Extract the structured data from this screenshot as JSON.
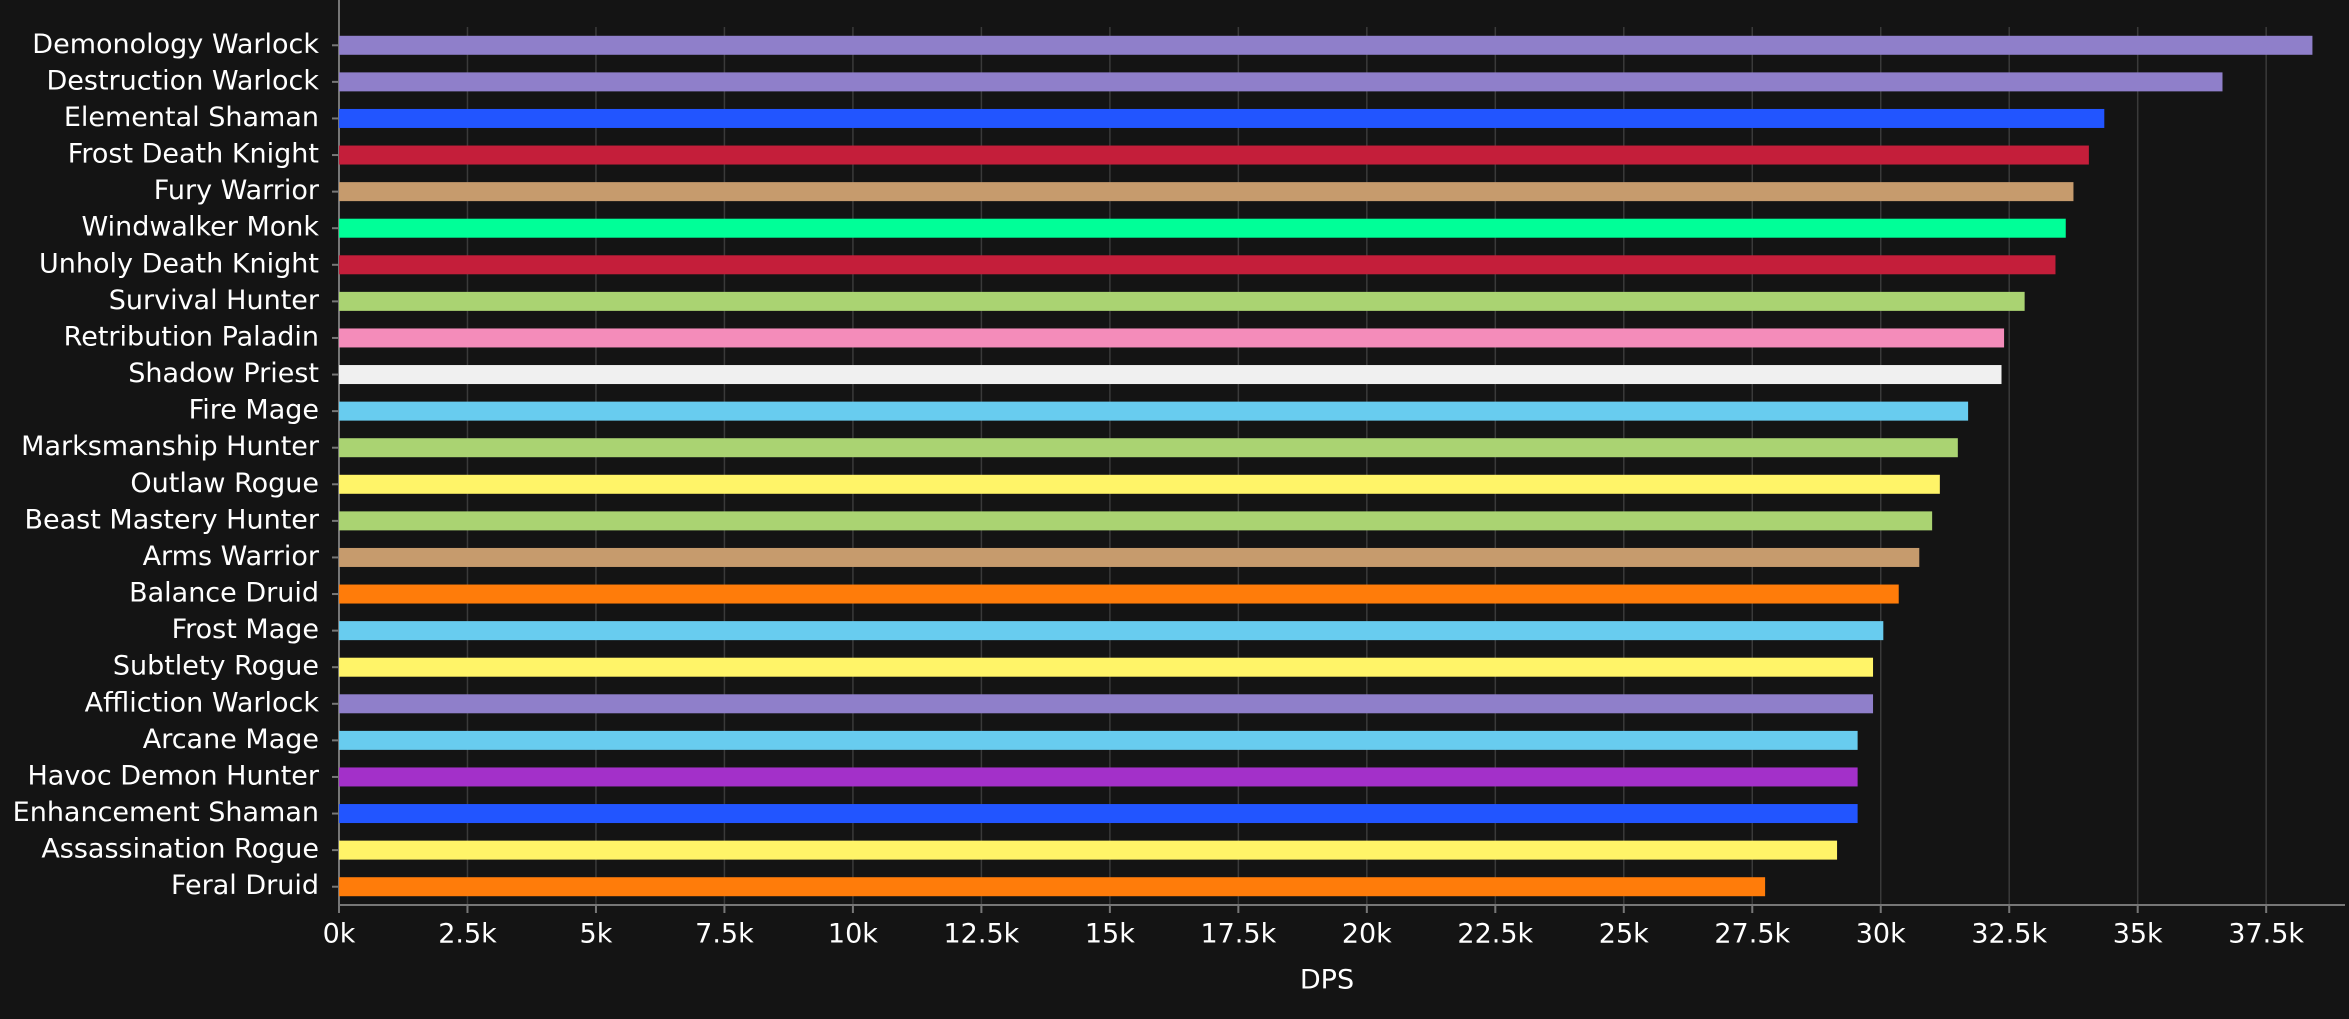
{
  "chart_data": {
    "type": "bar",
    "orientation": "horizontal",
    "x_label": "DPS",
    "categories": [
      "Demonology Warlock",
      "Destruction Warlock",
      "Elemental Shaman",
      "Frost Death Knight",
      "Fury Warrior",
      "Windwalker Monk",
      "Unholy Death Knight",
      "Survival Hunter",
      "Retribution Paladin",
      "Shadow Priest",
      "Fire Mage",
      "Marksmanship Hunter",
      "Outlaw Rogue",
      "Beast Mastery Hunter",
      "Arms Warrior",
      "Balance Druid",
      "Frost Mage",
      "Subtlety Rogue",
      "Affliction Warlock",
      "Arcane Mage",
      "Havoc Demon Hunter",
      "Enhancement Shaman",
      "Assassination Rogue",
      "Feral Druid"
    ],
    "values": [
      38400,
      36650,
      34350,
      34050,
      33750,
      33600,
      33400,
      32800,
      32400,
      32350,
      31700,
      31500,
      31150,
      31000,
      30750,
      30350,
      30050,
      29850,
      29850,
      29550,
      29550,
      29550,
      29150,
      27750
    ],
    "colors": [
      "#8f7fca",
      "#8f7fca",
      "#2255ff",
      "#c41e3a",
      "#c69b6d",
      "#00ff98",
      "#c41e3a",
      "#aad372",
      "#f48cba",
      "#f0f0f0",
      "#68ccef",
      "#aad372",
      "#fff468",
      "#aad372",
      "#c69b6d",
      "#ff7c0a",
      "#68ccef",
      "#fff468",
      "#8f7fca",
      "#68ccef",
      "#a330c9",
      "#2255ff",
      "#fff468",
      "#ff7c0a"
    ],
    "xlim": [
      0,
      38450
    ],
    "xticks": [
      {
        "value": 0,
        "label": "0k"
      },
      {
        "value": 2500,
        "label": "2.5k"
      },
      {
        "value": 5000,
        "label": "5k"
      },
      {
        "value": 7500,
        "label": "7.5k"
      },
      {
        "value": 10000,
        "label": "10k"
      },
      {
        "value": 12500,
        "label": "12.5k"
      },
      {
        "value": 15000,
        "label": "15k"
      },
      {
        "value": 17500,
        "label": "17.5k"
      },
      {
        "value": 20000,
        "label": "20k"
      },
      {
        "value": 22500,
        "label": "22.5k"
      },
      {
        "value": 25000,
        "label": "25k"
      },
      {
        "value": 27500,
        "label": "27.5k"
      },
      {
        "value": 30000,
        "label": "30k"
      },
      {
        "value": 32500,
        "label": "32.5k"
      },
      {
        "value": 35000,
        "label": "35k"
      },
      {
        "value": 37500,
        "label": "37.5k"
      }
    ],
    "grid": true
  }
}
